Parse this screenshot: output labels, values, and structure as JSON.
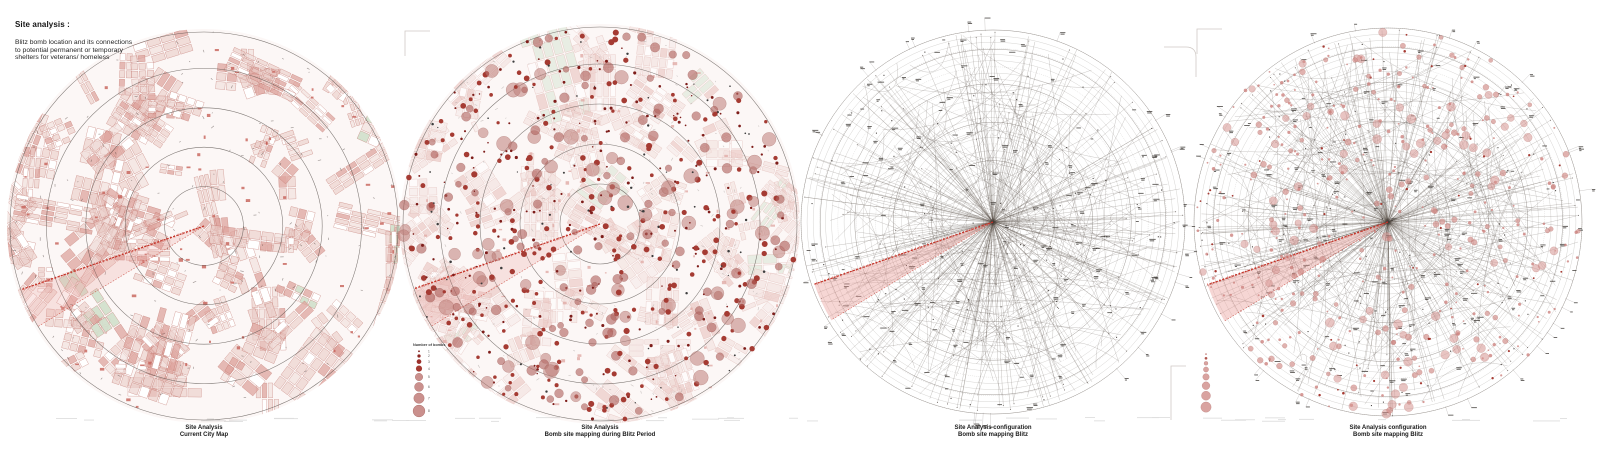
{
  "header": {
    "title": "Site analysis :",
    "description_lines": [
      "Blitz bomb location and its connections",
      "to potential permanent or temporary",
      "shelters for veterans/ homeless"
    ]
  },
  "panels": [
    {
      "name": "current-city-map",
      "caption_line1": "Site Analysis",
      "caption_line2": "Current City Map"
    },
    {
      "name": "bomb-site-mapping-blitz-period",
      "caption_line1": "Site Analysis",
      "caption_line2": "Bomb site mapping during Blitz Period",
      "legend": {
        "title": "Number of bombs",
        "labels": [
          "1",
          "2",
          "3",
          "4",
          "5",
          "6",
          "7",
          "8"
        ]
      }
    },
    {
      "name": "site-analysis-configuration",
      "caption_line1": "Site Analysis configuration",
      "caption_line2": "Bomb site mapping Blitz"
    },
    {
      "name": "site-analysis-configuration-bombs",
      "caption_line1": "Site Analysis configuration",
      "caption_line2": "Bomb site mapping Blitz"
    }
  ],
  "colors": {
    "accent_red": "#c4352a",
    "wedge_fill": "rgba(232,152,148,0.42)",
    "map_block_stroke": "rgba(186,104,96,0.85)",
    "map_block_fill": "rgba(233,203,199,0.6)",
    "park_green": "rgba(208,223,203,0.9)",
    "ring_gray": "rgba(70,62,58,0.7)",
    "net_line": "rgba(92,82,75,0.5)",
    "dot_dark_red": "#7e1d1a",
    "dot_mid_red": "#a53b33",
    "dot_pink": "rgba(196,128,124,0.75)"
  }
}
